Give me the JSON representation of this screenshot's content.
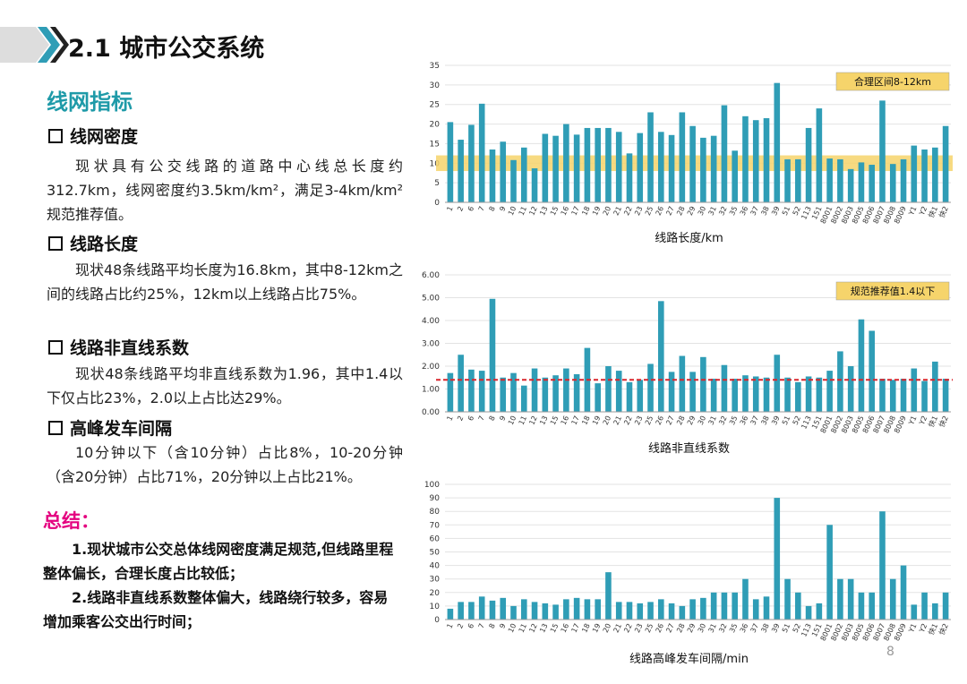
{
  "header": {
    "title": "2.1 城市公交系统"
  },
  "section_title": "线网指标",
  "sections": [
    {
      "heading": "线网密度",
      "text": "现状具有公交线路的道路中心线总长度约312.7km，线网密度约3.5km/km²，满足3-4km/km²规范推荐值。"
    },
    {
      "heading": "线路长度",
      "text": "现状48条线路平均长度为16.8km，其中8-12km之间的线路占比约25%，12km以上线路占比75%。"
    },
    {
      "heading": "线路非直线系数",
      "text": "现状48条线路平均非直线系数为1.96，其中1.4以下仅占比23%，2.0以上占比达29%。"
    },
    {
      "heading": "高峰发车间隔",
      "text": "10分钟以下（含10分钟）占比8%，10-20分钟（含20分钟）占比71%，20分钟以上占比21%。"
    }
  ],
  "summary": {
    "title": "总结：",
    "items": [
      "1.现状城市公交总体线网密度满足规范,但线路里程整体偏长，合理长度占比较低；",
      "2.线路非直线系数整体偏大，线路绕行较多，容易增加乘客公交出行时间；"
    ]
  },
  "page_number": "8",
  "chart_data": [
    {
      "type": "bar",
      "x_label": "线路长度/km",
      "annotation": "合理区间8-12km",
      "color": "#2f9db6",
      "highlight_band": [
        8,
        12
      ],
      "band_color": "#f6d46b",
      "categories": [
        "1",
        "2",
        "6",
        "7",
        "8",
        "9",
        "10",
        "11",
        "12",
        "13",
        "15",
        "16",
        "17",
        "18",
        "19",
        "20",
        "21",
        "22",
        "23",
        "25",
        "26",
        "27",
        "28",
        "29",
        "30",
        "31",
        "32",
        "35",
        "36",
        "37",
        "38",
        "39",
        "51",
        "52",
        "113",
        "151",
        "8001",
        "8002",
        "8003",
        "8005",
        "8006",
        "8007",
        "8008",
        "8009",
        "Y1",
        "Y2",
        "快1",
        "快2"
      ],
      "values": [
        20.5,
        16,
        19.8,
        25.2,
        13.5,
        15.5,
        10.8,
        14,
        8.7,
        17.5,
        17,
        20,
        17.3,
        19,
        19,
        19,
        18,
        12.5,
        17.7,
        23,
        18,
        17.2,
        23,
        19.5,
        16.5,
        17,
        24.8,
        13.2,
        22,
        21,
        21.5,
        30.5,
        11,
        11,
        19,
        24,
        11.2,
        11,
        8.5,
        10.2,
        9.6,
        26,
        9.8,
        11,
        14.5,
        13.5,
        14,
        19.5
      ],
      "ylim": [
        0,
        35
      ],
      "yticks": [
        0,
        5,
        10,
        15,
        20,
        25,
        30,
        35
      ],
      "grid": true
    },
    {
      "type": "bar",
      "x_label": "线路非直线系数",
      "annotation": "规范推荐值1.4以下",
      "color": "#2f9db6",
      "reference_line": 1.4,
      "reference_color": "#d9262c",
      "categories": [
        "1",
        "2",
        "6",
        "7",
        "8",
        "9",
        "10",
        "11",
        "12",
        "13",
        "15",
        "16",
        "17",
        "18",
        "19",
        "20",
        "21",
        "22",
        "23",
        "25",
        "26",
        "27",
        "28",
        "29",
        "30",
        "31",
        "32",
        "35",
        "36",
        "37",
        "38",
        "39",
        "51",
        "52",
        "113",
        "151",
        "8001",
        "8002",
        "8003",
        "8005",
        "8006",
        "8007",
        "8008",
        "8009",
        "Y1",
        "Y2",
        "快1",
        "快2"
      ],
      "values": [
        1.7,
        2.5,
        1.85,
        1.8,
        4.95,
        1.5,
        1.7,
        1.15,
        1.9,
        1.5,
        1.6,
        1.9,
        1.65,
        2.8,
        1.25,
        2.0,
        1.8,
        1.3,
        1.4,
        2.1,
        4.85,
        1.75,
        2.45,
        1.75,
        2.4,
        1.45,
        2.05,
        1.45,
        1.6,
        1.55,
        1.5,
        2.5,
        1.5,
        1.3,
        1.55,
        1.5,
        1.8,
        2.65,
        2.0,
        4.05,
        3.55,
        1.45,
        1.4,
        1.45,
        1.9,
        1.35,
        2.2,
        1.45
      ],
      "ylim": [
        0,
        6
      ],
      "yticks": [
        {
          "value": 0,
          "label": "0.00"
        },
        {
          "value": 1,
          "label": "1.00"
        },
        {
          "value": 2,
          "label": "2.00"
        },
        {
          "value": 3,
          "label": "3.00"
        },
        {
          "value": 4,
          "label": "4.00"
        },
        {
          "value": 5,
          "label": "5.00"
        },
        {
          "value": 6,
          "label": "6.00"
        }
      ],
      "grid": true
    },
    {
      "type": "bar",
      "x_label": "线路高峰发车间隔/min",
      "color": "#2f9db6",
      "categories": [
        "1",
        "2",
        "6",
        "7",
        "8",
        "9",
        "10",
        "11",
        "12",
        "13",
        "15",
        "16",
        "17",
        "18",
        "19",
        "20",
        "21",
        "22",
        "23",
        "25",
        "26",
        "27",
        "28",
        "29",
        "30",
        "31",
        "32",
        "35",
        "36",
        "37",
        "38",
        "39",
        "51",
        "52",
        "113",
        "151",
        "8001",
        "8002",
        "8003",
        "8005",
        "8006",
        "8007",
        "8008",
        "8009",
        "Y1",
        "Y2",
        "快1",
        "快2"
      ],
      "values": [
        8,
        13,
        13,
        17,
        14,
        16,
        10,
        15,
        13,
        12,
        11,
        15,
        16,
        15,
        15,
        35,
        13,
        13,
        12,
        13,
        15,
        12,
        10,
        15,
        16,
        20,
        20,
        20,
        30,
        15,
        17,
        90,
        30,
        20,
        10,
        12,
        70,
        30,
        30,
        20,
        20,
        80,
        30,
        40,
        11,
        20,
        12,
        20
      ],
      "ylim": [
        0,
        100
      ],
      "yticks": [
        0,
        10,
        20,
        30,
        40,
        50,
        60,
        70,
        80,
        90,
        100
      ],
      "grid": true
    }
  ]
}
